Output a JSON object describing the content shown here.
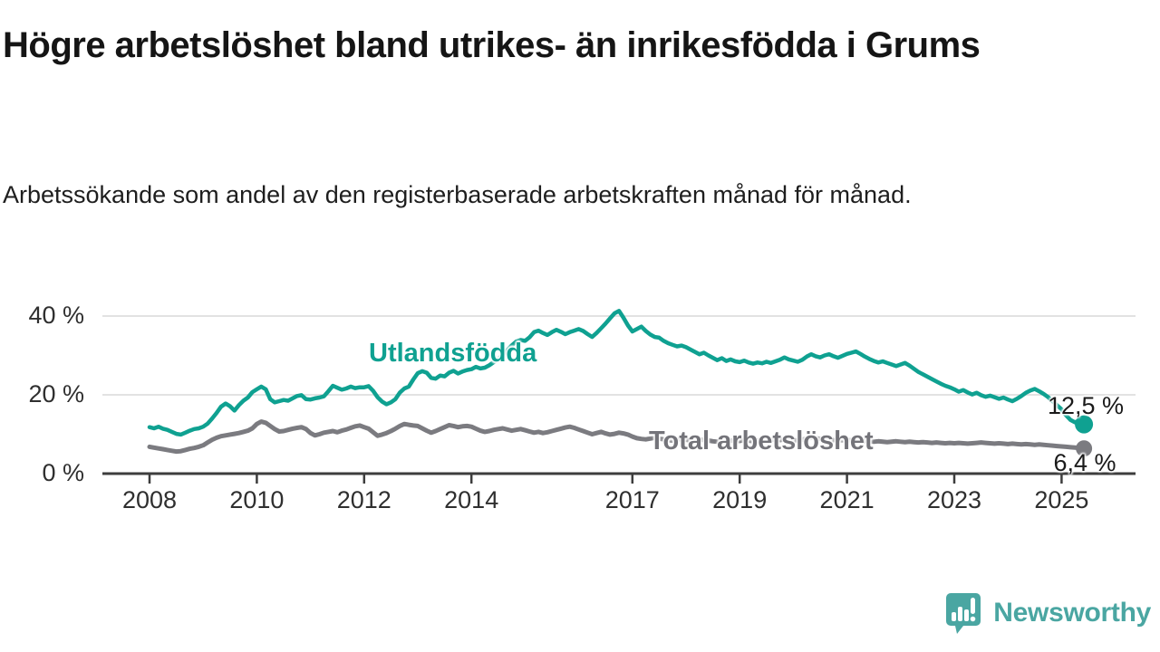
{
  "header": {
    "title": "Högre arbetslöshet bland utrikes- än inrikesfödda i Grums",
    "subtitle": "Arbetssökande som andel av den registerbaserade arbetskraften månad för månad."
  },
  "chart_data": {
    "type": "line",
    "unit": "%",
    "frequency": "monthly",
    "x_start": {
      "year": 2008,
      "month": 1
    },
    "x_end": {
      "year": 2025,
      "month": 6
    },
    "grid": "horizontal-only",
    "y_axis": {
      "range": [
        0,
        45
      ],
      "ticks": [
        {
          "label": "0 %",
          "value": 0
        },
        {
          "label": "20 %",
          "value": 20
        },
        {
          "label": "40 %",
          "value": 40
        }
      ]
    },
    "x_axis": {
      "ticks": [
        {
          "label": "2008",
          "year": 2008
        },
        {
          "label": "2010",
          "year": 2010
        },
        {
          "label": "2012",
          "year": 2012
        },
        {
          "label": "2014",
          "year": 2014
        },
        {
          "label": "2017",
          "year": 2017
        },
        {
          "label": "2019",
          "year": 2019
        },
        {
          "label": "2021",
          "year": 2021
        },
        {
          "label": "2023",
          "year": 2023
        },
        {
          "label": "2025",
          "year": 2025
        }
      ]
    },
    "series": [
      {
        "name": "Utlandsfödda",
        "color": "#0fa191",
        "end_value": 12.5,
        "end_label": "12,5 %",
        "values": [
          11.8,
          11.5,
          11.9,
          11.4,
          11.1,
          10.6,
          10.1,
          9.9,
          10.4,
          10.9,
          11.3,
          11.5,
          11.9,
          12.7,
          14.0,
          15.4,
          17.0,
          17.8,
          17.1,
          16.0,
          17.4,
          18.5,
          19.3,
          20.7,
          21.4,
          22.1,
          21.4,
          18.9,
          18.1,
          18.4,
          18.7,
          18.5,
          19.1,
          19.7,
          19.9,
          18.9,
          18.8,
          19.1,
          19.3,
          19.6,
          20.9,
          22.3,
          21.8,
          21.3,
          21.6,
          22.1,
          21.7,
          21.9,
          21.9,
          22.2,
          21.0,
          19.4,
          18.3,
          17.6,
          18.1,
          18.9,
          20.6,
          21.6,
          22.1,
          23.9,
          25.5,
          26.0,
          25.6,
          24.3,
          24.1,
          24.9,
          24.7,
          25.6,
          26.1,
          25.4,
          25.9,
          26.3,
          26.5,
          27.1,
          26.7,
          26.9,
          27.5,
          28.3,
          29.1,
          30.1,
          31.3,
          32.5,
          33.5,
          33.9,
          33.7,
          34.6,
          35.9,
          36.3,
          35.7,
          35.2,
          35.9,
          36.5,
          36.0,
          35.4,
          35.9,
          36.3,
          36.7,
          36.2,
          35.4,
          34.7,
          35.7,
          36.9,
          38.1,
          39.4,
          40.7,
          41.3,
          39.6,
          37.6,
          36.1,
          36.7,
          37.3,
          36.2,
          35.3,
          34.7,
          34.5,
          33.7,
          33.1,
          32.7,
          32.3,
          32.5,
          32.1,
          31.5,
          30.9,
          30.3,
          30.7,
          30.0,
          29.4,
          28.8,
          29.3,
          28.6,
          29.0,
          28.5,
          28.3,
          28.7,
          28.2,
          27.9,
          28.2,
          28.0,
          28.4,
          28.1,
          28.5,
          28.9,
          29.5,
          29.0,
          28.7,
          28.4,
          28.9,
          29.7,
          30.3,
          29.8,
          29.5,
          30.0,
          30.3,
          29.8,
          29.4,
          29.9,
          30.4,
          30.7,
          31.0,
          30.4,
          29.7,
          29.1,
          28.6,
          28.2,
          28.5,
          28.1,
          27.7,
          27.3,
          27.7,
          28.1,
          27.4,
          26.6,
          25.8,
          25.2,
          24.6,
          24.0,
          23.4,
          22.8,
          22.3,
          21.9,
          21.4,
          20.8,
          21.2,
          20.6,
          20.1,
          20.5,
          19.9,
          19.5,
          19.8,
          19.4,
          19.0,
          19.3,
          18.8,
          18.4,
          19.0,
          19.7,
          20.5,
          21.1,
          21.5,
          20.9,
          20.2,
          19.4,
          18.4,
          17.3,
          16.3,
          14.8,
          13.6,
          13.0,
          13.5,
          12.5
        ]
      },
      {
        "name": "Total arbetslöshet",
        "color": "#7b7b80",
        "end_value": 6.4,
        "end_label": "6,4 %",
        "values": [
          6.8,
          6.6,
          6.4,
          6.2,
          6.0,
          5.8,
          5.6,
          5.7,
          6.0,
          6.3,
          6.5,
          6.8,
          7.2,
          7.9,
          8.6,
          9.1,
          9.5,
          9.7,
          9.9,
          10.1,
          10.3,
          10.6,
          10.9,
          11.5,
          12.6,
          13.2,
          12.9,
          12.1,
          11.3,
          10.7,
          10.8,
          11.1,
          11.4,
          11.6,
          11.8,
          11.3,
          10.3,
          9.7,
          10.0,
          10.4,
          10.6,
          10.8,
          10.5,
          10.9,
          11.2,
          11.6,
          12.0,
          12.2,
          11.8,
          11.4,
          10.5,
          9.6,
          9.9,
          10.3,
          10.8,
          11.4,
          12.1,
          12.6,
          12.4,
          12.2,
          12.1,
          11.5,
          10.9,
          10.4,
          10.8,
          11.3,
          11.8,
          12.3,
          12.1,
          11.8,
          12.0,
          12.1,
          11.9,
          11.4,
          10.9,
          10.6,
          10.8,
          11.1,
          11.3,
          11.5,
          11.2,
          10.9,
          11.1,
          11.3,
          11.0,
          10.7,
          10.4,
          10.6,
          10.3,
          10.5,
          10.8,
          11.1,
          11.4,
          11.7,
          11.9,
          11.6,
          11.2,
          10.8,
          10.4,
          10.0,
          10.3,
          10.6,
          10.2,
          9.9,
          10.1,
          10.4,
          10.2,
          9.9,
          9.4,
          9.0,
          8.8,
          8.7,
          8.9,
          9.1,
          8.9,
          8.7,
          8.5,
          8.4,
          8.6,
          8.8,
          8.6,
          8.4,
          8.3,
          8.5,
          8.6,
          8.4,
          8.2,
          8.1,
          8.3,
          8.5,
          8.4,
          8.2,
          8.3,
          8.5,
          8.4,
          8.2,
          8.4,
          8.6,
          8.5,
          8.7,
          8.6,
          8.5,
          8.7,
          8.6,
          8.5,
          8.4,
          8.6,
          8.9,
          9.1,
          9.0,
          8.8,
          8.7,
          8.6,
          8.5,
          8.4,
          8.5,
          8.4,
          8.5,
          8.3,
          8.2,
          8.3,
          8.2,
          8.1,
          8.2,
          8.1,
          8.0,
          8.1,
          8.2,
          8.1,
          8.0,
          8.1,
          8.0,
          7.9,
          8.0,
          7.9,
          7.8,
          7.9,
          7.8,
          7.7,
          7.8,
          7.7,
          7.8,
          7.7,
          7.6,
          7.7,
          7.8,
          7.9,
          7.8,
          7.7,
          7.6,
          7.7,
          7.6,
          7.5,
          7.6,
          7.5,
          7.4,
          7.5,
          7.4,
          7.3,
          7.4,
          7.3,
          7.2,
          7.1,
          7.0,
          6.9,
          6.8,
          6.7,
          6.6,
          6.5,
          6.4
        ]
      }
    ],
    "style": {
      "grid_color": "#d8d8d8",
      "axis_color": "#3d3d3d",
      "tick_label_color": "#2f2f2f"
    }
  },
  "branding": {
    "name": "Newsworthy",
    "color": "#4aa6a2",
    "icon": "speech-bubble-bar-chart-exclamation"
  }
}
